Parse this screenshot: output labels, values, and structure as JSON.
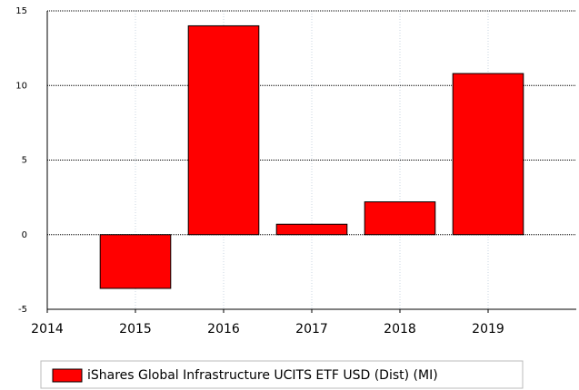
{
  "chart_data": {
    "type": "bar",
    "x": [
      2015,
      2016,
      2017,
      2018,
      2019
    ],
    "series": [
      {
        "name": "iShares Global Infrastructure UCITS ETF USD (Dist) (MI)",
        "color": "#ff0000",
        "values": [
          -3.6,
          14.0,
          0.7,
          2.2,
          10.8
        ]
      }
    ],
    "xlim": [
      2014,
      2020
    ],
    "xticks": [
      2014,
      2015,
      2016,
      2017,
      2018,
      2019
    ],
    "ylim": [
      -5,
      15
    ],
    "yticks": [
      -5,
      0,
      5,
      10,
      15
    ],
    "grid": true,
    "legend": "bottom"
  }
}
